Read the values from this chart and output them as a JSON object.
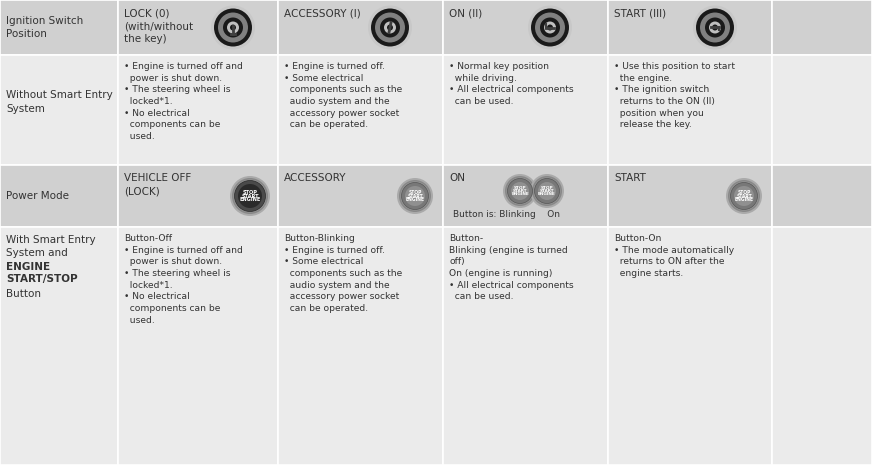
{
  "fig_w": 8.72,
  "fig_h": 4.65,
  "dpi": 100,
  "bg": "#e0e0e0",
  "row_bg_dark": "#d0d0d0",
  "row_bg_light": "#ebebeb",
  "border_color": "#ffffff",
  "text_color": "#333333",
  "cols_left": [
    0,
    118,
    278,
    443,
    608,
    772
  ],
  "cols_right": [
    118,
    278,
    443,
    608,
    772,
    872
  ],
  "rows_top": [
    0,
    55,
    165,
    227,
    465
  ],
  "row0_bg": "#cccccc",
  "row1_bg": "#f0f0f0",
  "row2_bg": "#d4d4d4",
  "row3_bg": "#f0f0f0",
  "row_bgs": [
    "#d0d0d0",
    "#ebebeb",
    "#d0d0d0",
    "#ebebeb"
  ],
  "header_texts": [
    [
      "LOCK (0)",
      "(with/without",
      "the key)"
    ],
    [
      "ACCESSORY (I)"
    ],
    [
      "ON (II)"
    ],
    [
      "START (III)"
    ]
  ],
  "row1_texts": [
    "• Engine is turned off and\n  power is shut down.\n• The steering wheel is\n  locked*1.\n• No electrical\n  components can be\n  used.",
    "• Engine is turned off.\n• Some electrical\n  components such as the\n  audio system and the\n  accessory power socket\n  can be operated.",
    "• Normal key position\n  while driving.\n• All electrical components\n  can be used.",
    "• Use this position to start\n  the engine.\n• The ignition switch\n  returns to the ON (II)\n  position when you\n  release the key."
  ],
  "row2_texts": [
    "VEHICLE OFF\n(LOCK)",
    "ACCESSORY",
    "ON",
    "START"
  ],
  "row3_texts": [
    "Button-Off\n• Engine is turned off and\n  power is shut down.\n• The steering wheel is\n  locked*1.\n• No electrical\n  components can be\n  used.",
    "Button-Blinking\n• Engine is turned off.\n• Some electrical\n  components such as the\n  audio system and the\n  accessory power socket\n  can be operated.",
    "Button-\nBlinking (engine is turned\noff)\nOn (engine is running)\n• All electrical components\n  can be used.",
    "Button-On\n• The mode automatically\n  returns to ON after the\n  engine starts."
  ]
}
